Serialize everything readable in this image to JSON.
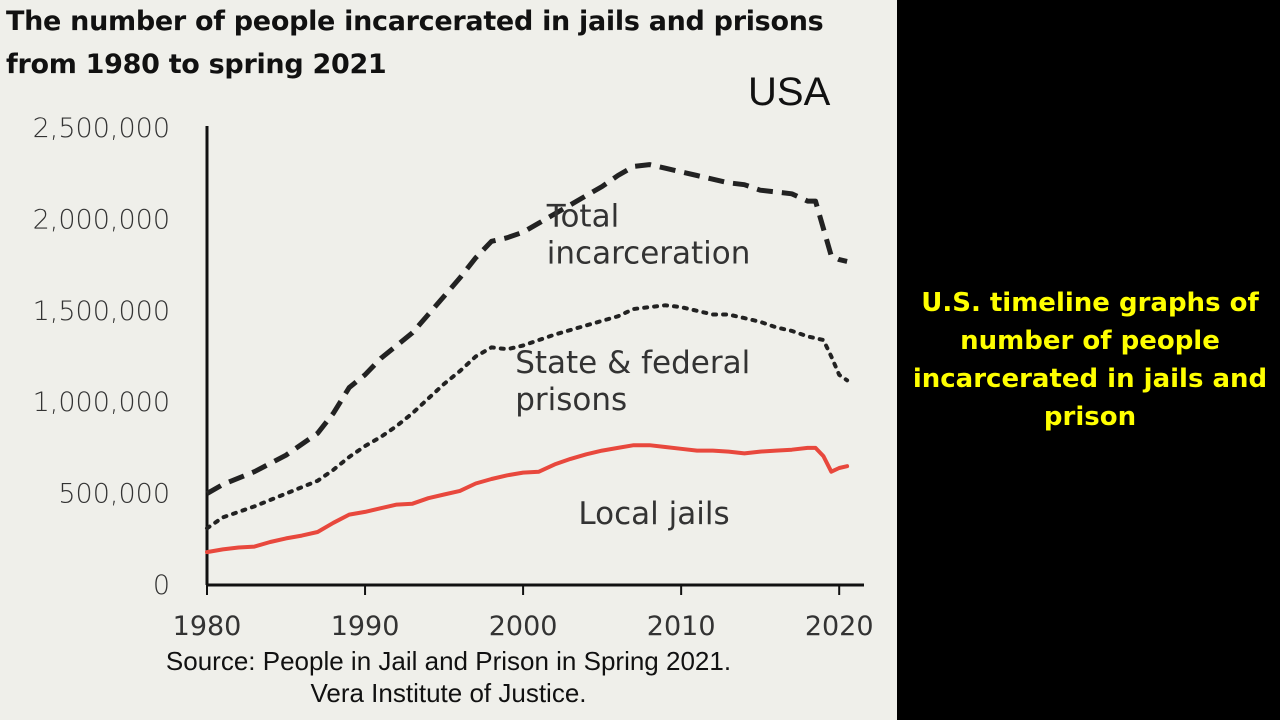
{
  "chart_data": {
    "type": "line",
    "title": "The number of people incarcerated in jails and prisons from 1980 to spring 2021",
    "subtitle": "USA",
    "xlabel": "",
    "ylabel": "",
    "xlim": [
      1980,
      2021
    ],
    "ylim": [
      0,
      2500000
    ],
    "x_ticks": [
      1980,
      1990,
      2000,
      2010,
      2020
    ],
    "x_tick_labels": [
      "1980",
      "1990",
      "2000",
      "2010",
      "2020"
    ],
    "y_ticks": [
      0,
      500000,
      1000000,
      1500000,
      2000000,
      2500000
    ],
    "y_tick_labels": [
      "0",
      "500,000",
      "1,000,000",
      "1,500,000",
      "2,000,000",
      "2,500,000"
    ],
    "grid": false,
    "legend": "inline labels",
    "series": [
      {
        "name": "Total incarceration",
        "label_lines": [
          "Total",
          "incarceration"
        ],
        "style": "dashed",
        "color": "#222222",
        "x": [
          1980,
          1981,
          1983,
          1985,
          1987,
          1988,
          1989,
          1990,
          1991,
          1992,
          1993,
          1994,
          1995,
          1996,
          1997,
          1998,
          1999,
          2000,
          2001,
          2002,
          2003,
          2004,
          2005,
          2006,
          2007,
          2008,
          2009,
          2010,
          2011,
          2012,
          2013,
          2014,
          2015,
          2016,
          2017,
          2018,
          2018.5,
          2019,
          2019.5,
          2020,
          2020.5
        ],
        "y": [
          500000,
          550000,
          620000,
          710000,
          830000,
          940000,
          1080000,
          1150000,
          1240000,
          1310000,
          1380000,
          1480000,
          1580000,
          1680000,
          1790000,
          1880000,
          1900000,
          1930000,
          1980000,
          2030000,
          2080000,
          2130000,
          2180000,
          2240000,
          2290000,
          2300000,
          2280000,
          2260000,
          2240000,
          2220000,
          2200000,
          2190000,
          2160000,
          2150000,
          2140000,
          2100000,
          2100000,
          1950000,
          1800000,
          1780000,
          1770000
        ]
      },
      {
        "name": "State & federal prisons",
        "label_lines": [
          "State & federal",
          "prisons"
        ],
        "style": "dotted",
        "color": "#222222",
        "x": [
          1980,
          1981,
          1983,
          1985,
          1987,
          1988,
          1989,
          1990,
          1991,
          1992,
          1993,
          1994,
          1995,
          1996,
          1997,
          1998,
          1999,
          2000,
          2002,
          2004,
          2006,
          2007,
          2008,
          2009,
          2010,
          2011,
          2012,
          2013,
          2014,
          2015,
          2016,
          2017,
          2018,
          2018.5,
          2019,
          2019.5,
          2020,
          2020.5
        ],
        "y": [
          310000,
          370000,
          430000,
          500000,
          570000,
          630000,
          700000,
          760000,
          810000,
          870000,
          940000,
          1020000,
          1100000,
          1170000,
          1250000,
          1300000,
          1290000,
          1310000,
          1370000,
          1420000,
          1470000,
          1510000,
          1520000,
          1530000,
          1520000,
          1500000,
          1480000,
          1480000,
          1460000,
          1440000,
          1410000,
          1390000,
          1360000,
          1350000,
          1340000,
          1250000,
          1150000,
          1120000
        ]
      },
      {
        "name": "Local jails",
        "label_lines": [
          "Local jails"
        ],
        "style": "solid",
        "color": "#e8483d",
        "x": [
          1980,
          1981,
          1982,
          1983,
          1984,
          1985,
          1986,
          1987,
          1988,
          1989,
          1990,
          1991,
          1992,
          1993,
          1994,
          1995,
          1996,
          1997,
          1998,
          1999,
          2000,
          2001,
          2002,
          2003,
          2004,
          2005,
          2006,
          2007,
          2008,
          2009,
          2010,
          2011,
          2012,
          2013,
          2014,
          2015,
          2016,
          2017,
          2018,
          2018.5,
          2019,
          2019.5,
          2020,
          2020.5
        ],
        "y": [
          180000,
          195000,
          205000,
          210000,
          235000,
          255000,
          270000,
          290000,
          340000,
          385000,
          400000,
          420000,
          440000,
          445000,
          475000,
          495000,
          515000,
          555000,
          580000,
          600000,
          615000,
          620000,
          660000,
          690000,
          715000,
          735000,
          750000,
          765000,
          765000,
          755000,
          745000,
          735000,
          735000,
          730000,
          720000,
          730000,
          735000,
          740000,
          750000,
          750000,
          705000,
          620000,
          640000,
          650000
        ]
      }
    ]
  },
  "source": {
    "line1": "Source: People in Jail and Prison in Spring 2021.",
    "line2": "Vera Institute of Justice."
  },
  "side_caption": "U.S. timeline graphs of number of people incarcerated in jails and prison",
  "colors": {
    "panel_background": "#efefea",
    "slide_background": "#000000",
    "caption_text": "#ffff00",
    "jails_line": "#e8483d"
  }
}
